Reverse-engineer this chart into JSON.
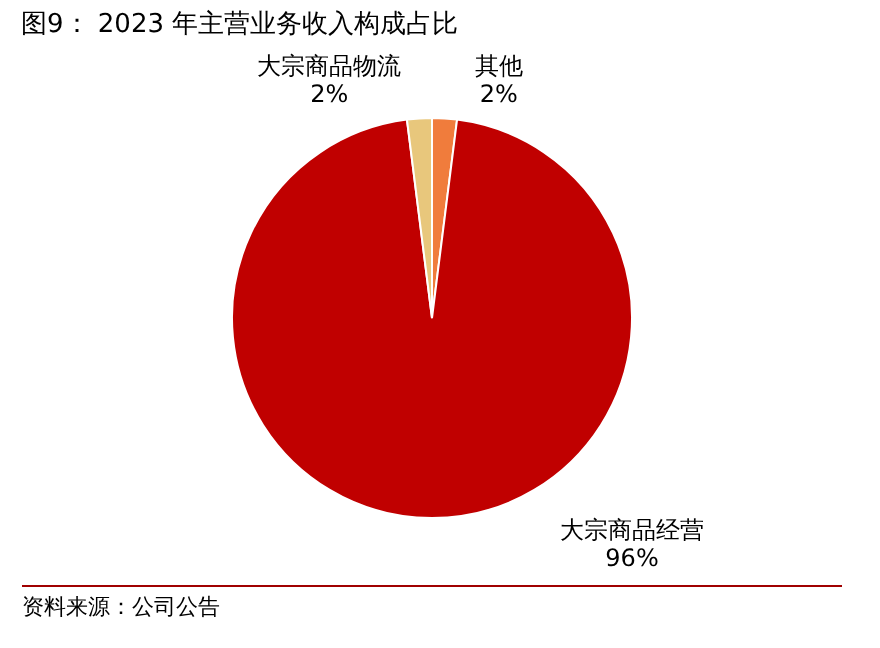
{
  "chart_data": {
    "type": "pie",
    "title": "图9：  2023 年主营业务收入构成占比",
    "categories": [
      "其他",
      "大宗商品经营",
      "大宗商品物流"
    ],
    "values": [
      2,
      96,
      2
    ],
    "colors": [
      "#f07c3c",
      "#c00000",
      "#e8c77c"
    ],
    "value_labels": [
      "2%",
      "96%",
      "2%"
    ],
    "annotations": [
      "资料来源：公司公告"
    ]
  }
}
